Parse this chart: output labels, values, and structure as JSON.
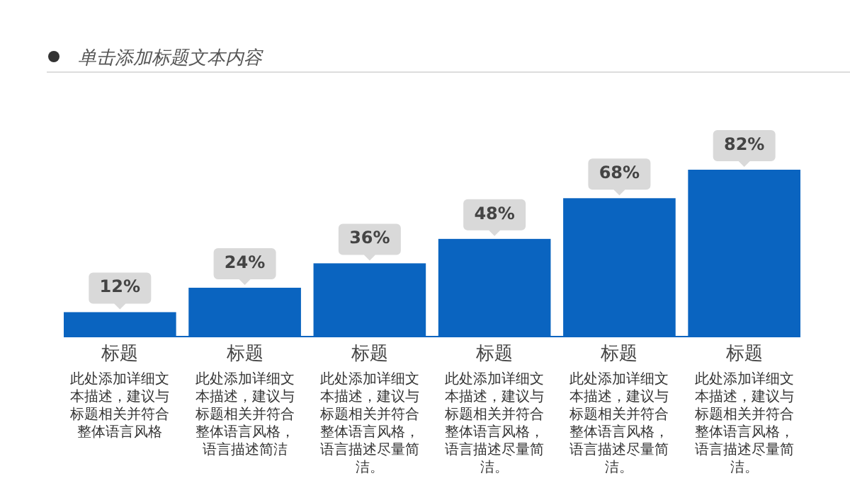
{
  "chart_data": {
    "type": "bar",
    "title": "单击添加标题文本内容",
    "categories": [
      "标题",
      "标题",
      "标题",
      "标题",
      "标题",
      "标题"
    ],
    "values": [
      12,
      24,
      36,
      48,
      68,
      82
    ],
    "color": "#0a64c0",
    "value_labels": [
      "12%",
      "24%",
      "36%",
      "48%",
      "68%",
      "82%"
    ],
    "annotations": [
      "此处添加详细文本描述，建议与标题相关并符合整体语言风格",
      "此处添加详细文本描述，建议与标题相关并符合整体语言风格，语言描述简洁",
      "此处添加详细文本描述，建议与标题相关并符合整体语言风格，语言描述尽量简洁。",
      "此处添加详细文本描述，建议与标题相关并符合整体语言风格，语言描述尽量简洁。",
      "此处添加详细文本描述，建议与标题相关并符合整体语言风格，语言描述尽量简洁。",
      "此处添加详细文本描述，建议与标题相关并符合整体语言风格，语言描述尽量简洁。"
    ]
  }
}
